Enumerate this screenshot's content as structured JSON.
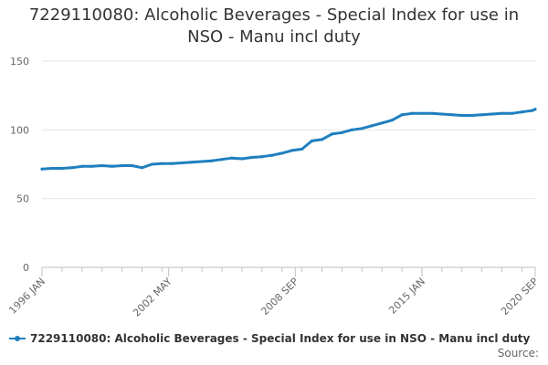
{
  "chart_data": {
    "type": "line",
    "title_line1": "7229110080: Alcoholic Beverages - Special Index for use in",
    "title_line2": "NSO - Manu incl duty",
    "xlabel": "",
    "ylabel": "",
    "ylim": [
      0,
      150
    ],
    "yticks": [
      "0",
      "50",
      "100",
      "150"
    ],
    "x_tick_labels": [
      "1996 JAN",
      "2002 MAY",
      "2008 SEP",
      "2015 JAN",
      "2020 SEP"
    ],
    "grid": true,
    "legend_position": "bottom-left",
    "series": [
      {
        "name": "7229110080: Alcoholic Beverages - Special Index for use in NSO - Manu incl duty",
        "color": "#1f7fbf",
        "x": [
          "1996 JAN",
          "1996 JUL",
          "1997 JAN",
          "1997 JUL",
          "1998 JAN",
          "1998 JUL",
          "1999 JAN",
          "1999 JUL",
          "2000 JAN",
          "2000 JUL",
          "2001 JAN",
          "2001 JUL",
          "2002 JAN",
          "2002 JUL",
          "2003 JAN",
          "2003 JUL",
          "2004 JAN",
          "2004 JUL",
          "2005 JAN",
          "2005 JUL",
          "2006 JAN",
          "2006 JUL",
          "2007 JAN",
          "2007 JUL",
          "2008 JAN",
          "2008 JUL",
          "2009 JAN",
          "2009 JUL",
          "2010 JAN",
          "2010 JUL",
          "2011 JAN",
          "2011 JUL",
          "2012 JAN",
          "2012 JUL",
          "2013 JAN",
          "2013 JUL",
          "2014 JAN",
          "2014 JUL",
          "2015 JAN",
          "2015 JUL",
          "2016 JAN",
          "2016 JUL",
          "2017 JAN",
          "2017 JUL",
          "2018 JAN",
          "2018 JUL",
          "2019 JAN",
          "2019 JUL",
          "2020 JAN",
          "2020 JUL",
          "2020 SEP"
        ],
        "values": [
          71.5,
          72,
          72,
          72.5,
          73.5,
          73.5,
          74,
          73.5,
          74,
          74,
          72.5,
          75,
          75.5,
          75.5,
          76,
          76.5,
          77,
          77.5,
          78.5,
          79.5,
          79,
          80,
          80.5,
          81.5,
          83,
          85,
          86,
          92,
          93,
          97,
          98,
          100,
          101,
          103,
          105,
          107,
          111,
          112,
          112,
          112,
          111.5,
          111,
          110.5,
          110.5,
          111,
          111.5,
          112,
          112,
          113,
          114,
          115
        ]
      }
    ]
  },
  "credits": "Source:"
}
